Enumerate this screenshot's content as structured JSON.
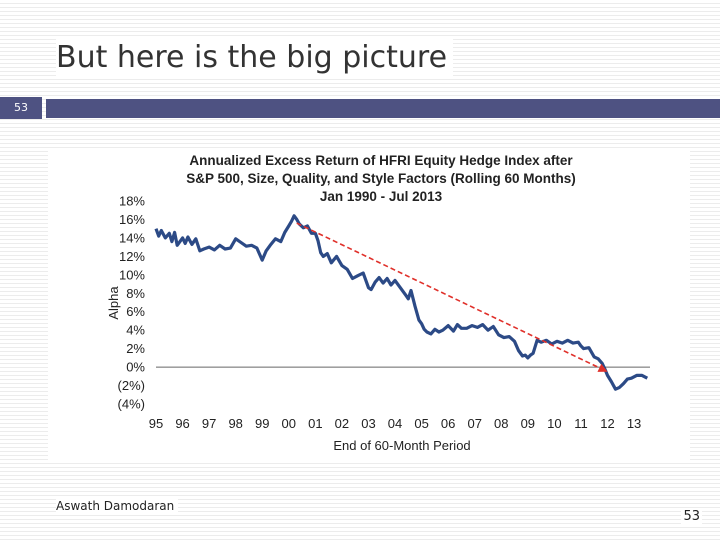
{
  "slide": {
    "title": "But here is the big picture",
    "number_box": "53",
    "footer_author": "Aswath Damodaran",
    "page_number": "53"
  },
  "colors": {
    "band": "#4e5282",
    "series": "#2c4a86",
    "trend": "#e0302a"
  },
  "chart_data": {
    "type": "line",
    "title": [
      "Annualized Excess Return of HFRI Equity Hedge Index after",
      "S&P 500, Size, Quality, and Style Factors (Rolling 60 Months)",
      "Jan 1990 - Jul 2013"
    ],
    "xlabel": "End of 60-Month Period",
    "ylabel": "Alpha",
    "xlim": [
      1995,
      2013.6
    ],
    "ylim": [
      -4,
      18
    ],
    "x_ticks": [
      {
        "value": 1995,
        "label": "95"
      },
      {
        "value": 1996,
        "label": "96"
      },
      {
        "value": 1997,
        "label": "97"
      },
      {
        "value": 1998,
        "label": "98"
      },
      {
        "value": 1999,
        "label": "99"
      },
      {
        "value": 2000,
        "label": "00"
      },
      {
        "value": 2001,
        "label": "01"
      },
      {
        "value": 2002,
        "label": "02"
      },
      {
        "value": 2003,
        "label": "03"
      },
      {
        "value": 2004,
        "label": "04"
      },
      {
        "value": 2005,
        "label": "05"
      },
      {
        "value": 2006,
        "label": "06"
      },
      {
        "value": 2007,
        "label": "07"
      },
      {
        "value": 2008,
        "label": "08"
      },
      {
        "value": 2009,
        "label": "09"
      },
      {
        "value": 2010,
        "label": "10"
      },
      {
        "value": 2011,
        "label": "11"
      },
      {
        "value": 2012,
        "label": "12"
      },
      {
        "value": 2013,
        "label": "13"
      }
    ],
    "y_ticks": [
      {
        "value": 18,
        "label": "18%"
      },
      {
        "value": 16,
        "label": "16%"
      },
      {
        "value": 14,
        "label": "14%"
      },
      {
        "value": 12,
        "label": "12%"
      },
      {
        "value": 10,
        "label": "10%"
      },
      {
        "value": 8,
        "label": "8%"
      },
      {
        "value": 6,
        "label": "6%"
      },
      {
        "value": 4,
        "label": "4%"
      },
      {
        "value": 2,
        "label": "2%"
      },
      {
        "value": 0,
        "label": "0%"
      },
      {
        "value": -2,
        "label": "(2%)"
      },
      {
        "value": -4,
        "label": "(4%)"
      }
    ],
    "zero_line": true,
    "grid": false,
    "series": [
      {
        "x": [
          1995.0,
          1995.1,
          1995.2,
          1995.35,
          1995.5,
          1995.6,
          1995.7,
          1995.8,
          1996.0,
          1996.1,
          1996.2,
          1996.35,
          1996.5,
          1996.65,
          1996.8,
          1997.0,
          1997.2,
          1997.4,
          1997.6,
          1997.8,
          1998.0,
          1998.2,
          1998.4,
          1998.6,
          1998.8,
          1999.0,
          1999.15,
          1999.3,
          1999.5,
          1999.7,
          1999.85,
          2000.0,
          2000.1,
          2000.2,
          2000.3,
          2000.4,
          2000.55,
          2000.7,
          2000.85,
          2001.0,
          2001.1,
          2001.2,
          2001.3,
          2001.45,
          2001.6,
          2001.8,
          2002.0,
          2002.2,
          2002.4,
          2002.6,
          2002.8,
          2003.0,
          2003.1,
          2003.25,
          2003.4,
          2003.55,
          2003.7,
          2003.85,
          2004.0,
          2004.2,
          2004.4,
          2004.5,
          2004.6,
          2004.75,
          2004.9,
          2005.0,
          2005.1,
          2005.2,
          2005.35,
          2005.5,
          2005.65,
          2005.8,
          2006.0,
          2006.2,
          2006.35,
          2006.5,
          2006.7,
          2006.9,
          2007.1,
          2007.3,
          2007.5,
          2007.7,
          2007.9,
          2008.1,
          2008.3,
          2008.5,
          2008.65,
          2008.8,
          2008.9,
          2009.0,
          2009.1,
          2009.2,
          2009.35,
          2009.5,
          2009.7,
          2009.9,
          2010.1,
          2010.3,
          2010.5,
          2010.7,
          2010.9,
          2011.0,
          2011.1,
          2011.3,
          2011.5,
          2011.65,
          2011.8,
          2011.9,
          2012.0,
          2012.15,
          2012.3,
          2012.45,
          2012.6,
          2012.75,
          2012.9,
          2013.1,
          2013.3,
          2013.5
        ],
        "y": [
          15.0,
          14.2,
          14.8,
          14.0,
          14.5,
          13.6,
          14.6,
          13.2,
          14.0,
          13.4,
          14.1,
          13.3,
          13.9,
          12.6,
          12.8,
          13.0,
          12.7,
          13.2,
          12.8,
          12.9,
          13.9,
          13.5,
          13.1,
          13.2,
          12.9,
          11.6,
          12.6,
          13.2,
          13.9,
          13.6,
          14.6,
          15.3,
          15.8,
          16.4,
          16.0,
          15.5,
          15.1,
          15.3,
          14.5,
          14.5,
          13.7,
          12.4,
          12.0,
          12.3,
          11.3,
          12.0,
          11.0,
          10.6,
          9.6,
          9.9,
          10.2,
          8.6,
          8.4,
          9.2,
          9.7,
          9.1,
          9.6,
          8.9,
          9.4,
          8.6,
          7.8,
          7.4,
          8.3,
          6.6,
          5.1,
          4.7,
          4.1,
          3.8,
          3.6,
          4.1,
          3.8,
          4.0,
          4.5,
          3.9,
          4.6,
          4.2,
          4.2,
          4.5,
          4.3,
          4.6,
          4.0,
          4.4,
          3.5,
          3.2,
          3.3,
          2.8,
          1.8,
          1.2,
          1.3,
          1.0,
          1.3,
          1.5,
          2.9,
          2.7,
          2.9,
          2.5,
          2.8,
          2.6,
          2.9,
          2.6,
          2.7,
          2.3,
          2.0,
          2.1,
          1.1,
          0.9,
          0.4,
          -0.2,
          -0.9,
          -1.6,
          -2.4,
          -2.2,
          -1.8,
          -1.3,
          -1.2,
          -0.9,
          -0.9,
          -1.2
        ]
      }
    ],
    "trend_line": {
      "x": [
        2000.3,
        2012.0
      ],
      "y": [
        15.6,
        -0.5
      ]
    }
  }
}
